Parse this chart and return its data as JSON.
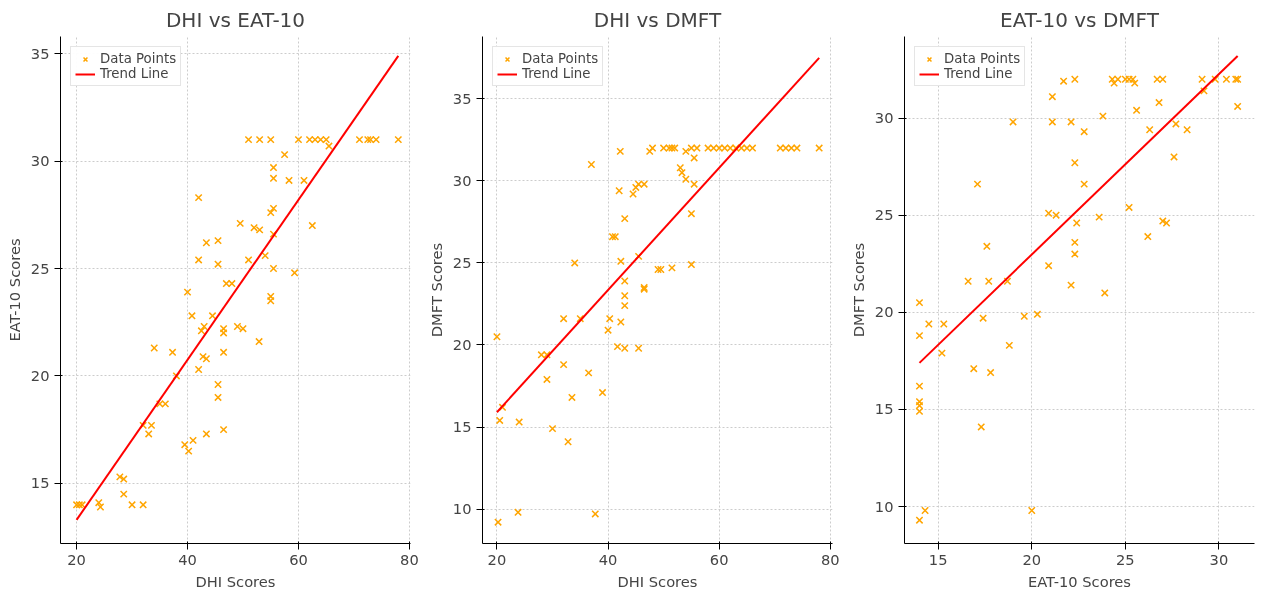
{
  "chart_data": [
    {
      "type": "scatter",
      "title": "DHI vs EAT-10",
      "xlabel": "DHI Scores",
      "ylabel": "EAT-10 Scores",
      "xlim": [
        17.1,
        80.2
      ],
      "ylim": [
        12.2,
        35.8
      ],
      "xticks": [
        20,
        40,
        60,
        80
      ],
      "yticks": [
        15,
        20,
        25,
        30,
        35
      ],
      "grid": true,
      "legend": "top left",
      "series": [
        {
          "name": "Data Points",
          "marker": "cross",
          "color": "#ffa500",
          "x": [
            20,
            20.5,
            21,
            24,
            24.3,
            27.8,
            28.5,
            28.5,
            30,
            32,
            32,
            33,
            33.5,
            34,
            35,
            36,
            37.3,
            38,
            39.5,
            40,
            40.2,
            41,
            40.8,
            42,
            42,
            42,
            42.5,
            43,
            42.8,
            43.4,
            43.4,
            43.4,
            44.5,
            45.5,
            45.5,
            45.5,
            45.5,
            46.5,
            46.5,
            46.5,
            46.5,
            47,
            48,
            49,
            49.5,
            50,
            51,
            51,
            52,
            53,
            53,
            52.9,
            54,
            55,
            55,
            55.5,
            55.5,
            55.5,
            55,
            55,
            55.5,
            55.5,
            57.5,
            58.3,
            59.3,
            60,
            61,
            62.5,
            62,
            63,
            64,
            65,
            65.5,
            71,
            72.5,
            73,
            74,
            78
          ],
          "values": [
            14,
            14,
            14,
            14.1,
            13.9,
            15.3,
            15.2,
            14.5,
            14,
            14,
            17.7,
            17.3,
            17.7,
            21.3,
            18.7,
            18.7,
            21.1,
            20,
            16.8,
            23.9,
            16.5,
            17,
            22.8,
            20.3,
            28.3,
            25.4,
            22.1,
            22.3,
            20.9,
            20.8,
            26.2,
            17.3,
            22.8,
            26.3,
            25.2,
            19.6,
            19,
            22.2,
            22,
            21.1,
            17.5,
            24.3,
            24.3,
            22.3,
            27.1,
            22.2,
            25.4,
            31,
            26.9,
            31,
            26.8,
            21.6,
            25.6,
            31,
            27.6,
            27.8,
            26.6,
            25,
            23.7,
            23.5,
            29.7,
            29.2,
            30.3,
            29.1,
            24.8,
            31,
            29.1,
            27,
            31,
            31,
            31,
            31,
            30.7,
            31,
            31,
            31,
            31,
            31
          ]
        },
        {
          "name": "Trend Line",
          "type": "line",
          "marker": "none",
          "color": "#ff0000",
          "x": [
            20,
            78
          ],
          "values": [
            13.3,
            34.9
          ]
        }
      ]
    },
    {
      "type": "scatter",
      "title": "DHI vs DMFT",
      "xlabel": "DHI Scores",
      "ylabel": "DMFT Scores",
      "xlim": [
        17.4,
        80.4
      ],
      "ylim": [
        7.9,
        38.8
      ],
      "xticks": [
        20,
        40,
        60,
        80
      ],
      "yticks": [
        10,
        15,
        20,
        25,
        30,
        35
      ],
      "grid": true,
      "legend": "top left",
      "series": [
        {
          "name": "Data Points",
          "marker": "cross",
          "color": "#ffa500",
          "x": [
            20,
            20.2,
            20.5,
            21,
            23.8,
            24,
            28,
            29,
            29,
            30,
            32,
            32,
            32.8,
            33.5,
            34,
            35,
            36.5,
            37,
            37.7,
            39,
            40,
            40.3,
            40.8,
            41.3,
            41.7,
            42,
            42.2,
            42.3,
            42.3,
            43,
            43,
            43,
            43,
            43,
            44.5,
            45,
            45.5,
            45.5,
            45.5,
            46.5,
            46.5,
            46.5,
            47.5,
            48,
            49,
            49.5,
            50,
            51,
            51.5,
            51.5,
            52,
            53,
            53.3,
            54,
            54,
            55,
            55,
            55,
            55.5,
            55.5,
            56,
            58,
            59,
            60,
            61,
            62,
            63,
            64,
            65,
            66,
            71,
            72,
            73,
            74,
            78
          ],
          "values": [
            20.5,
            9.2,
            15.4,
            16.2,
            9.8,
            15.3,
            19.4,
            19.4,
            17.9,
            14.9,
            21.6,
            18.8,
            14.1,
            16.8,
            25,
            21.6,
            18.3,
            31,
            9.7,
            17.1,
            20.9,
            21.6,
            26.6,
            26.6,
            19.9,
            29.4,
            31.8,
            25.1,
            21.4,
            27.7,
            23.9,
            23,
            22.4,
            19.8,
            29.2,
            29.6,
            29.8,
            19.8,
            25.4,
            29.8,
            23.5,
            23.4,
            31.8,
            32,
            24.6,
            24.6,
            32,
            32,
            32,
            24.7,
            32,
            30.8,
            30.5,
            31.8,
            30.1,
            32,
            28,
            24.9,
            31.4,
            29.8,
            32,
            32,
            32,
            32,
            32,
            32,
            32,
            32,
            32,
            32,
            32,
            32,
            32,
            32,
            32
          ]
        },
        {
          "name": "Trend Line",
          "type": "line",
          "marker": "none",
          "color": "#ff0000",
          "x": [
            20,
            78
          ],
          "values": [
            15.9,
            37.5
          ]
        }
      ]
    },
    {
      "type": "scatter",
      "title": "EAT-10 vs DMFT",
      "xlabel": "EAT-10 Scores",
      "ylabel": "DMFT Scores",
      "xlim": [
        13.2,
        31.9
      ],
      "ylim": [
        8.1,
        34.2
      ],
      "xticks": [
        15,
        20,
        25,
        30
      ],
      "yticks": [
        10,
        15,
        20,
        25,
        30
      ],
      "grid": true,
      "legend": "top left",
      "series": [
        {
          "name": "Data Points",
          "marker": "cross",
          "color": "#ffa500",
          "x": [
            14,
            14,
            14,
            14,
            14,
            14,
            14,
            14.3,
            14.5,
            15.3,
            15.2,
            16.6,
            16.9,
            17.1,
            17.3,
            17.4,
            17.6,
            17.7,
            17.8,
            18.7,
            18.8,
            19,
            19.6,
            20,
            20.3,
            20.9,
            20.9,
            21.1,
            21.1,
            21.3,
            21.7,
            22.1,
            22.1,
            22.3,
            22.3,
            22.4,
            22.3,
            22.3,
            22.8,
            22.8,
            23.6,
            23.8,
            23.9,
            24.3,
            24.4,
            24.6,
            25,
            25.2,
            25.2,
            25.4,
            25.5,
            25.6,
            26.2,
            26.3,
            26.7,
            26.8,
            27,
            27,
            27.2,
            27.6,
            27.7,
            28.3,
            29.1,
            29.2,
            29.8,
            30.4,
            30.9,
            31,
            31
          ],
          "values": [
            20.5,
            18.8,
            16.2,
            15.4,
            15.2,
            14.9,
            9.3,
            9.8,
            19.4,
            19.4,
            17.9,
            21.6,
            17.1,
            26.6,
            14.1,
            19.7,
            23.4,
            21.6,
            16.9,
            21.6,
            18.3,
            29.8,
            19.8,
            9.8,
            19.9,
            25.1,
            22.4,
            31.1,
            29.8,
            25,
            31.9,
            29.8,
            21.4,
            32,
            27.7,
            24.6,
            23.6,
            23,
            29.3,
            26.6,
            24.9,
            30.1,
            21,
            32,
            31.8,
            32,
            32,
            32,
            25.4,
            32,
            31.8,
            30.4,
            23.9,
            29.4,
            32,
            30.8,
            32,
            24.7,
            24.6,
            28,
            29.7,
            29.4,
            32,
            31.4,
            32,
            32,
            32,
            32,
            30.6
          ]
        },
        {
          "name": "Trend Line",
          "type": "line",
          "marker": "none",
          "color": "#ff0000",
          "x": [
            14,
            31
          ],
          "values": [
            17.4,
            33.2
          ]
        }
      ]
    }
  ]
}
